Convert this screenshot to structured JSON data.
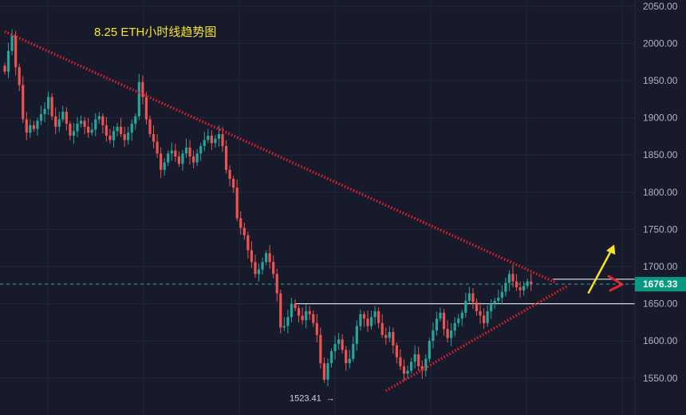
{
  "chart_data": {
    "type": "candlestick",
    "title": "8.25  ETH小时线趋势图",
    "y_ticks": [
      1550,
      1600,
      1650,
      1700,
      1750,
      1800,
      1850,
      1900,
      1950,
      2000,
      2050
    ],
    "y_tick_labels": [
      "1550.00",
      "1600.00",
      "1650.00",
      "1700.00",
      "1750.00",
      "1800.00",
      "1850.00",
      "1900.00",
      "1950.00",
      "2000.00",
      "2050.00"
    ],
    "ylim": [
      1527,
      2060
    ],
    "grid": true,
    "current_price": 1676.33,
    "current_price_label": "1676.33",
    "low_label": "1523.41",
    "low_arrow": "→",
    "low_value": 1523.41,
    "horizontal_levels": [
      1650,
      1683
    ],
    "closes": [
      1962,
      1990,
      2010,
      1968,
      1944,
      1898,
      1880,
      1890,
      1885,
      1896,
      1905,
      1912,
      1928,
      1902,
      1888,
      1898,
      1908,
      1892,
      1876,
      1882,
      1892,
      1896,
      1888,
      1880,
      1884,
      1898,
      1902,
      1890,
      1876,
      1870,
      1882,
      1888,
      1878,
      1870,
      1880,
      1892,
      1902,
      1948,
      1928,
      1898,
      1878,
      1868,
      1852,
      1830,
      1840,
      1852,
      1856,
      1848,
      1838,
      1852,
      1860,
      1848,
      1840,
      1852,
      1862,
      1870,
      1876,
      1866,
      1872,
      1878,
      1862,
      1830,
      1818,
      1806,
      1765,
      1752,
      1742,
      1722,
      1706,
      1690,
      1696,
      1706,
      1718,
      1706,
      1690,
      1664,
      1618,
      1620,
      1632,
      1650,
      1644,
      1634,
      1628,
      1640,
      1636,
      1624,
      1608,
      1570,
      1548,
      1570,
      1586,
      1596,
      1602,
      1588,
      1570,
      1576,
      1596,
      1620,
      1636,
      1630,
      1620,
      1632,
      1640,
      1624,
      1608,
      1604,
      1612,
      1594,
      1578,
      1566,
      1556,
      1560,
      1572,
      1582,
      1566,
      1560,
      1576,
      1600,
      1614,
      1630,
      1638,
      1616,
      1604,
      1614,
      1624,
      1630,
      1638,
      1654,
      1664,
      1652,
      1640,
      1634,
      1624,
      1640,
      1650,
      1654,
      1658,
      1666,
      1678,
      1690,
      1680,
      1672,
      1668,
      1674,
      1680,
      1676
    ],
    "trendlines": [
      {
        "from": [
          0,
          2016
        ],
        "to": [
          152,
          1678
        ],
        "color": "#e8212c"
      },
      {
        "from": [
          105,
          1533
        ],
        "to": [
          155,
          1674
        ],
        "color": "#e8212c"
      }
    ],
    "forecast_arrow_color": "#f5e427",
    "colors": {
      "up": "#26a69a",
      "down": "#ef5350",
      "price_tag": "#089981",
      "background": "#161a2b",
      "grid": "#232838"
    }
  }
}
